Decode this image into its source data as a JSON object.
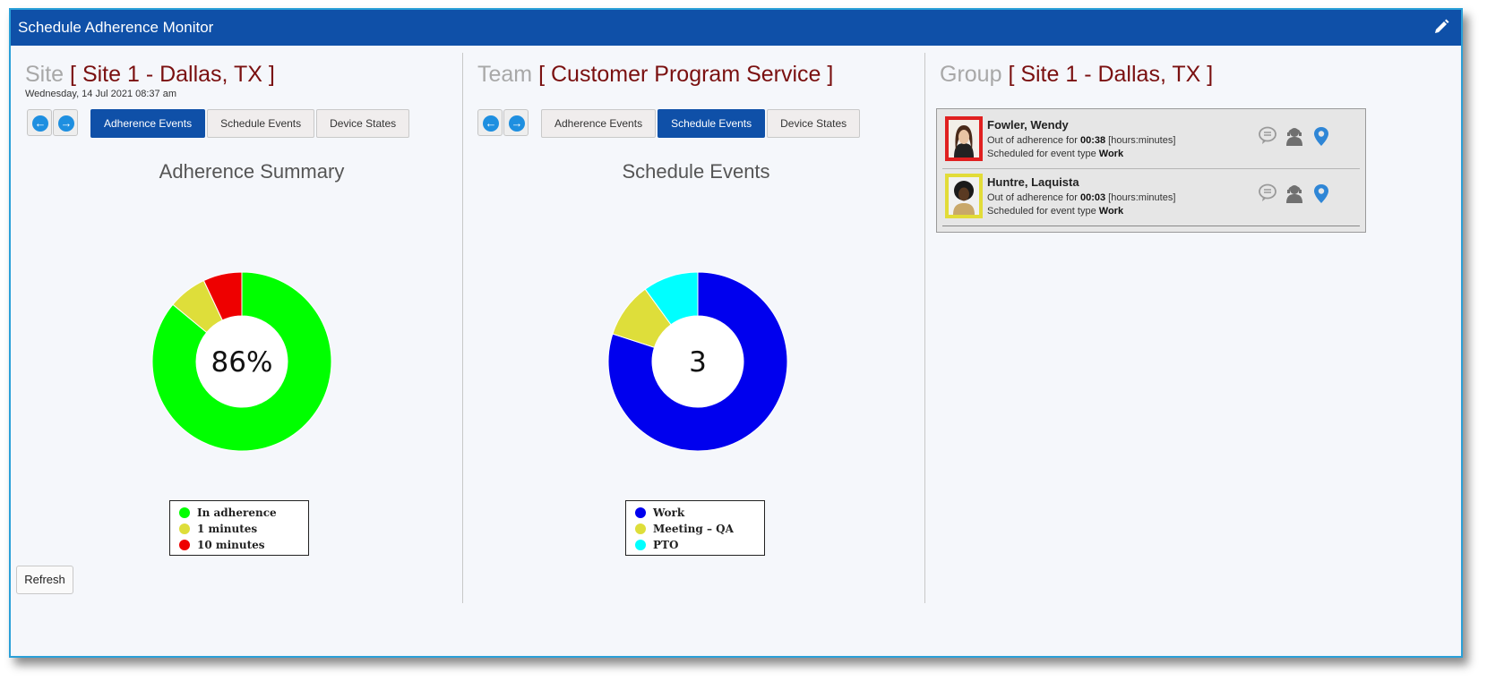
{
  "window": {
    "title": "Schedule Adherence Monitor"
  },
  "colors": {
    "header": "#0f50a8",
    "active_tab": "#0f50a8",
    "accent_text": "#7a1010"
  },
  "site_panel": {
    "label": "Site",
    "value": "[ Site 1 - Dallas, TX ]",
    "date": "Wednesday, 14 Jul 2021 08:37 am",
    "tabs": [
      "Adherence Events",
      "Schedule Events",
      "Device States"
    ],
    "active_tab": "Adherence Events",
    "chart_title": "Adherence Summary"
  },
  "team_panel": {
    "label": "Team",
    "value": "[ Customer Program Service ]",
    "tabs": [
      "Adherence Events",
      "Schedule Events",
      "Device States"
    ],
    "active_tab": "Schedule Events",
    "chart_title": "Schedule Events"
  },
  "group_panel": {
    "label": "Group",
    "value": "[ Site 1 - Dallas, TX ]",
    "agents": [
      {
        "name": "Fowler, Wendy",
        "line1_prefix": "Out of adherence for",
        "duration": "00:38",
        "line1_suffix": "[hours:minutes]",
        "line2_prefix": "Scheduled for event type",
        "event_type": "Work",
        "status_color": "#e02020"
      },
      {
        "name": "Huntre, Laquista",
        "line1_prefix": "Out of adherence for",
        "duration": "00:03",
        "line1_suffix": "[hours:minutes]",
        "line2_prefix": "Scheduled for event type",
        "event_type": "Work",
        "status_color": "#e2dc38"
      }
    ],
    "agent_icons": [
      "chat-icon",
      "agent-headset-icon",
      "location-pin-icon"
    ]
  },
  "refresh_label": "Refresh",
  "chart_data": [
    {
      "type": "pie",
      "title": "Adherence Summary",
      "center_label": "86%",
      "categories": [
        "In adherence",
        "1 minutes",
        "10 minutes"
      ],
      "values": [
        86,
        7,
        7
      ],
      "colors": [
        "#00ff00",
        "#dede3a",
        "#ee0000"
      ],
      "legend_position": "bottom"
    },
    {
      "type": "pie",
      "title": "Schedule Events",
      "center_label": "3",
      "categories": [
        "Work",
        "Meeting – QA",
        "PTO"
      ],
      "values": [
        80,
        10,
        10
      ],
      "colors": [
        "#0000ee",
        "#dede3a",
        "#00ffff"
      ],
      "legend_position": "bottom"
    }
  ]
}
